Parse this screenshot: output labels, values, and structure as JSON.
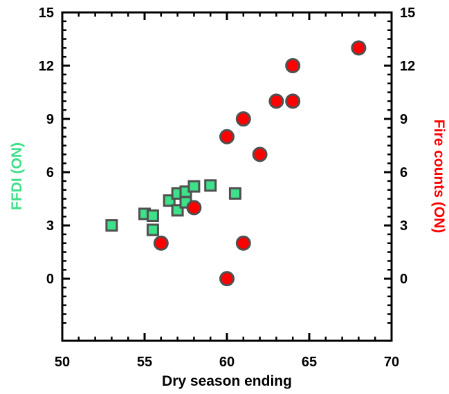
{
  "chart_data": {
    "type": "scatter",
    "xlabel": "Dry season ending",
    "ylabel_left": "FFDI (ON)",
    "ylabel_right": "Fire counts (ON)",
    "xlim": [
      50,
      70
    ],
    "ylim": [
      -3.5,
      15
    ],
    "x_ticks": [
      50,
      55,
      60,
      65,
      70
    ],
    "y_ticks": [
      0,
      3,
      6,
      9,
      12,
      15
    ],
    "grid": false,
    "colors": {
      "ffdi": "#3ee08a",
      "fire": "#ff0000",
      "marker_edge": "#505050",
      "left_axis_label": "#3ee08a",
      "right_axis_label": "#ff0000"
    },
    "series": [
      {
        "marker": "square",
        "axis": "left",
        "points": [
          {
            "x": 53,
            "y": 3.0
          },
          {
            "x": 55,
            "y": 3.65
          },
          {
            "x": 55.5,
            "y": 3.55
          },
          {
            "x": 55.5,
            "y": 2.75
          },
          {
            "x": 56.5,
            "y": 4.4
          },
          {
            "x": 57,
            "y": 4.8
          },
          {
            "x": 57,
            "y": 3.85
          },
          {
            "x": 57.5,
            "y": 4.9
          },
          {
            "x": 57.5,
            "y": 4.3
          },
          {
            "x": 58,
            "y": 5.2
          },
          {
            "x": 59,
            "y": 5.25
          },
          {
            "x": 60.5,
            "y": 4.8
          }
        ]
      },
      {
        "marker": "circle",
        "axis": "right",
        "points": [
          {
            "x": 56,
            "y": 2
          },
          {
            "x": 58,
            "y": 4
          },
          {
            "x": 60,
            "y": 0
          },
          {
            "x": 60,
            "y": 8
          },
          {
            "x": 61,
            "y": 2
          },
          {
            "x": 61,
            "y": 9
          },
          {
            "x": 62,
            "y": 7
          },
          {
            "x": 63,
            "y": 10
          },
          {
            "x": 64,
            "y": 10
          },
          {
            "x": 64,
            "y": 12
          },
          {
            "x": 68,
            "y": 13
          }
        ]
      }
    ]
  }
}
